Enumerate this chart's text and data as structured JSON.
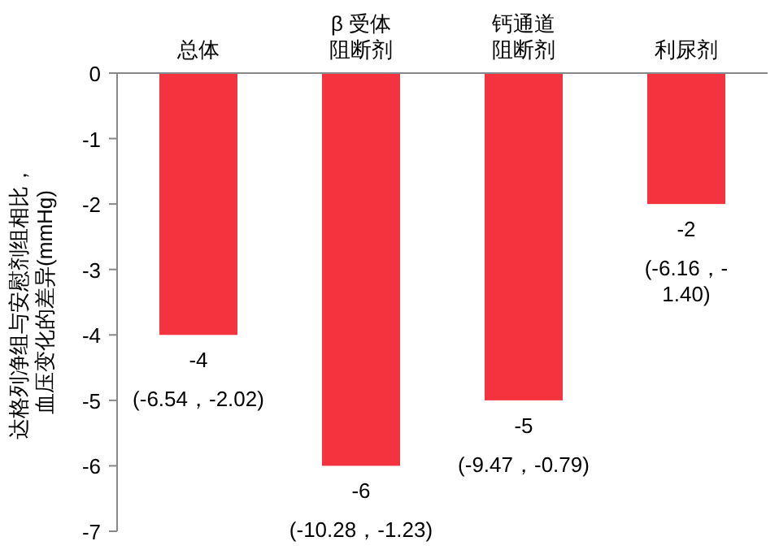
{
  "chart_data": {
    "type": "bar",
    "ylabel": "达格列净组与安慰剂组相比，血压变化的差异(mmHg)",
    "categories": [
      "总体",
      "β 受体阻断剂",
      "钙通道阻断剂",
      "利尿剂"
    ],
    "values": [
      -4,
      -6,
      -5,
      -2
    ],
    "color": "#f5333f",
    "data_labels": true,
    "ylim": [
      -7,
      0
    ],
    "yticks": [
      -7,
      -6,
      -5,
      -4,
      -3,
      -2,
      -1,
      0
    ],
    "grid": false,
    "annotations": [
      {
        "text": "(-6.54，-2.02)",
        "x": "总体",
        "y": -4
      },
      {
        "text": "(-10.28，-1.23)",
        "x": "β 受体阻断剂",
        "y": -6
      },
      {
        "text": "(-9.47，-0.79)",
        "x": "钙通道阻断剂",
        "y": -5
      },
      {
        "text": "(-6.16，-\n1.40)",
        "x": "利尿剂",
        "y": -2
      }
    ]
  }
}
